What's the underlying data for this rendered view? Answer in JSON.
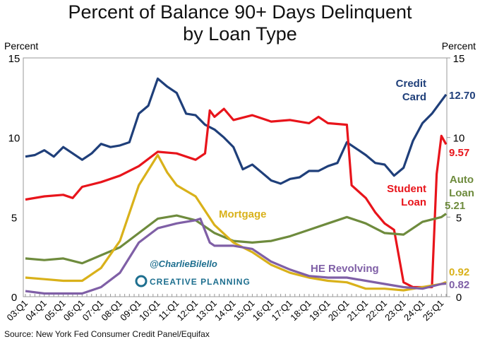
{
  "chart_data": {
    "type": "line",
    "title": "Percent of Balance 90+ Days Delinquent",
    "subtitle": "by Loan Type",
    "ylabel_left": "Percent",
    "ylabel_right": "Percent",
    "ylim": [
      0,
      15
    ],
    "yticks": [
      0,
      5,
      10,
      15
    ],
    "xticks": [
      "03:Q1",
      "04:Q1",
      "05:Q1",
      "06:Q1",
      "07:Q1",
      "08:Q1",
      "09:Q1",
      "10:Q1",
      "11:Q1",
      "12:Q1",
      "13:Q1",
      "14:Q1",
      "15:Q1",
      "16:Q1",
      "17:Q1",
      "18:Q1",
      "19:Q1",
      "20:Q1",
      "21:Q1",
      "22:Q1",
      "23:Q1",
      "24:Q1",
      "25:Q1"
    ],
    "xrange": [
      "03:Q1",
      "25:Q2"
    ],
    "grid": false,
    "series": [
      {
        "name": "Credit Card",
        "label": [
          "Credit",
          "Card"
        ],
        "end_label": "12.70",
        "color": "#1f3f7a",
        "points": [
          [
            "03:Q1",
            8.8
          ],
          [
            "03:Q3",
            8.9
          ],
          [
            "04:Q1",
            9.2
          ],
          [
            "04:Q3",
            8.8
          ],
          [
            "05:Q1",
            9.4
          ],
          [
            "05:Q3",
            9.0
          ],
          [
            "06:Q1",
            8.6
          ],
          [
            "06:Q3",
            9.0
          ],
          [
            "07:Q1",
            9.6
          ],
          [
            "07:Q3",
            9.4
          ],
          [
            "08:Q1",
            9.5
          ],
          [
            "08:Q3",
            9.7
          ],
          [
            "09:Q1",
            11.5
          ],
          [
            "09:Q3",
            12.0
          ],
          [
            "10:Q1",
            13.7
          ],
          [
            "10:Q3",
            13.2
          ],
          [
            "11:Q1",
            12.8
          ],
          [
            "11:Q3",
            11.5
          ],
          [
            "12:Q1",
            11.4
          ],
          [
            "12:Q3",
            10.8
          ],
          [
            "13:Q1",
            10.5
          ],
          [
            "13:Q3",
            10.0
          ],
          [
            "14:Q1",
            9.4
          ],
          [
            "14:Q3",
            8.0
          ],
          [
            "15:Q1",
            8.3
          ],
          [
            "15:Q3",
            7.8
          ],
          [
            "16:Q1",
            7.3
          ],
          [
            "16:Q3",
            7.1
          ],
          [
            "17:Q1",
            7.4
          ],
          [
            "17:Q3",
            7.5
          ],
          [
            "18:Q1",
            7.9
          ],
          [
            "18:Q3",
            7.9
          ],
          [
            "19:Q1",
            8.2
          ],
          [
            "19:Q3",
            8.4
          ],
          [
            "20:Q1",
            9.7
          ],
          [
            "20:Q3",
            9.3
          ],
          [
            "21:Q1",
            8.9
          ],
          [
            "21:Q3",
            8.4
          ],
          [
            "22:Q1",
            8.3
          ],
          [
            "22:Q3",
            7.6
          ],
          [
            "23:Q1",
            8.1
          ],
          [
            "23:Q3",
            9.8
          ],
          [
            "24:Q1",
            10.9
          ],
          [
            "24:Q3",
            11.5
          ],
          [
            "25:Q1",
            12.3
          ],
          [
            "25:Q2",
            12.7
          ]
        ]
      },
      {
        "name": "Student Loan",
        "label": [
          "Student",
          "Loan"
        ],
        "end_label": "9.57",
        "color": "#e8141b",
        "points": [
          [
            "03:Q1",
            6.1
          ],
          [
            "04:Q1",
            6.3
          ],
          [
            "05:Q1",
            6.4
          ],
          [
            "05:Q3",
            6.2
          ],
          [
            "06:Q1",
            6.9
          ],
          [
            "07:Q1",
            7.2
          ],
          [
            "08:Q1",
            7.6
          ],
          [
            "09:Q1",
            8.2
          ],
          [
            "10:Q1",
            9.1
          ],
          [
            "11:Q1",
            9.0
          ],
          [
            "12:Q1",
            8.6
          ],
          [
            "12:Q3",
            9.0
          ],
          [
            "12:Q4",
            11.7
          ],
          [
            "13:Q1",
            11.3
          ],
          [
            "13:Q3",
            11.8
          ],
          [
            "14:Q1",
            11.1
          ],
          [
            "15:Q1",
            11.4
          ],
          [
            "16:Q1",
            11.0
          ],
          [
            "17:Q1",
            11.1
          ],
          [
            "18:Q1",
            10.9
          ],
          [
            "18:Q3",
            11.3
          ],
          [
            "19:Q1",
            10.9
          ],
          [
            "20:Q1",
            10.8
          ],
          [
            "20:Q2",
            7.0
          ],
          [
            "21:Q1",
            6.2
          ],
          [
            "21:Q3",
            5.3
          ],
          [
            "22:Q1",
            4.6
          ],
          [
            "22:Q3",
            4.2
          ],
          [
            "23:Q1",
            0.9
          ],
          [
            "23:Q3",
            0.6
          ],
          [
            "24:Q1",
            0.6
          ],
          [
            "24:Q3",
            0.6
          ],
          [
            "24:Q4",
            7.7
          ],
          [
            "25:Q1",
            10.1
          ],
          [
            "25:Q2",
            9.57
          ]
        ]
      },
      {
        "name": "Auto Loan",
        "label": [
          "Auto",
          "Loan"
        ],
        "end_label": "5.21",
        "color": "#6e8b3d",
        "points": [
          [
            "03:Q1",
            2.4
          ],
          [
            "04:Q1",
            2.3
          ],
          [
            "05:Q1",
            2.4
          ],
          [
            "06:Q1",
            2.1
          ],
          [
            "07:Q1",
            2.6
          ],
          [
            "08:Q1",
            3.1
          ],
          [
            "09:Q1",
            4.0
          ],
          [
            "10:Q1",
            4.9
          ],
          [
            "11:Q1",
            5.1
          ],
          [
            "12:Q1",
            4.8
          ],
          [
            "13:Q1",
            4.0
          ],
          [
            "14:Q1",
            3.5
          ],
          [
            "15:Q1",
            3.4
          ],
          [
            "16:Q1",
            3.5
          ],
          [
            "17:Q1",
            3.8
          ],
          [
            "18:Q1",
            4.2
          ],
          [
            "19:Q1",
            4.6
          ],
          [
            "20:Q1",
            5.0
          ],
          [
            "21:Q1",
            4.6
          ],
          [
            "22:Q1",
            4.0
          ],
          [
            "23:Q1",
            3.9
          ],
          [
            "24:Q1",
            4.7
          ],
          [
            "25:Q1",
            5.0
          ],
          [
            "25:Q2",
            5.21
          ]
        ]
      },
      {
        "name": "Mortgage",
        "label": [
          "Mortgage"
        ],
        "end_label": "0.92",
        "color": "#d9b11a",
        "points": [
          [
            "03:Q1",
            1.2
          ],
          [
            "04:Q1",
            1.1
          ],
          [
            "05:Q1",
            1.0
          ],
          [
            "06:Q1",
            1.0
          ],
          [
            "07:Q1",
            1.8
          ],
          [
            "08:Q1",
            3.5
          ],
          [
            "09:Q1",
            7.0
          ],
          [
            "10:Q1",
            8.9
          ],
          [
            "10:Q3",
            7.8
          ],
          [
            "11:Q1",
            7.0
          ],
          [
            "12:Q1",
            6.3
          ],
          [
            "13:Q1",
            4.5
          ],
          [
            "14:Q1",
            3.4
          ],
          [
            "15:Q1",
            2.8
          ],
          [
            "16:Q1",
            2.0
          ],
          [
            "17:Q1",
            1.5
          ],
          [
            "18:Q1",
            1.2
          ],
          [
            "19:Q1",
            1.0
          ],
          [
            "20:Q1",
            0.9
          ],
          [
            "21:Q1",
            0.5
          ],
          [
            "22:Q1",
            0.5
          ],
          [
            "23:Q1",
            0.4
          ],
          [
            "24:Q1",
            0.6
          ],
          [
            "25:Q1",
            0.8
          ],
          [
            "25:Q2",
            0.92
          ]
        ]
      },
      {
        "name": "HE Revolving",
        "label": [
          "HE Revolving"
        ],
        "end_label": "0.82",
        "color": "#7f5fa6",
        "points": [
          [
            "03:Q1",
            0.35
          ],
          [
            "04:Q1",
            0.2
          ],
          [
            "05:Q1",
            0.2
          ],
          [
            "06:Q1",
            0.2
          ],
          [
            "07:Q1",
            0.6
          ],
          [
            "08:Q1",
            1.5
          ],
          [
            "09:Q1",
            3.4
          ],
          [
            "10:Q1",
            4.3
          ],
          [
            "11:Q1",
            4.6
          ],
          [
            "12:Q1",
            4.8
          ],
          [
            "12:Q2",
            4.9
          ],
          [
            "12:Q4",
            3.4
          ],
          [
            "13:Q1",
            3.2
          ],
          [
            "14:Q1",
            3.2
          ],
          [
            "15:Q1",
            3.0
          ],
          [
            "16:Q1",
            2.2
          ],
          [
            "17:Q1",
            1.7
          ],
          [
            "18:Q1",
            1.3
          ],
          [
            "19:Q1",
            1.2
          ],
          [
            "20:Q1",
            1.2
          ],
          [
            "21:Q1",
            1.0
          ],
          [
            "22:Q1",
            0.8
          ],
          [
            "23:Q1",
            0.6
          ],
          [
            "24:Q1",
            0.5
          ],
          [
            "25:Q1",
            0.8
          ],
          [
            "25:Q2",
            0.82
          ]
        ]
      }
    ],
    "source": "Source: New York Fed Consumer Credit Panel/Equifax",
    "watermark": "@CharlieBilello",
    "logo": "CREATIVE PLANNING"
  }
}
